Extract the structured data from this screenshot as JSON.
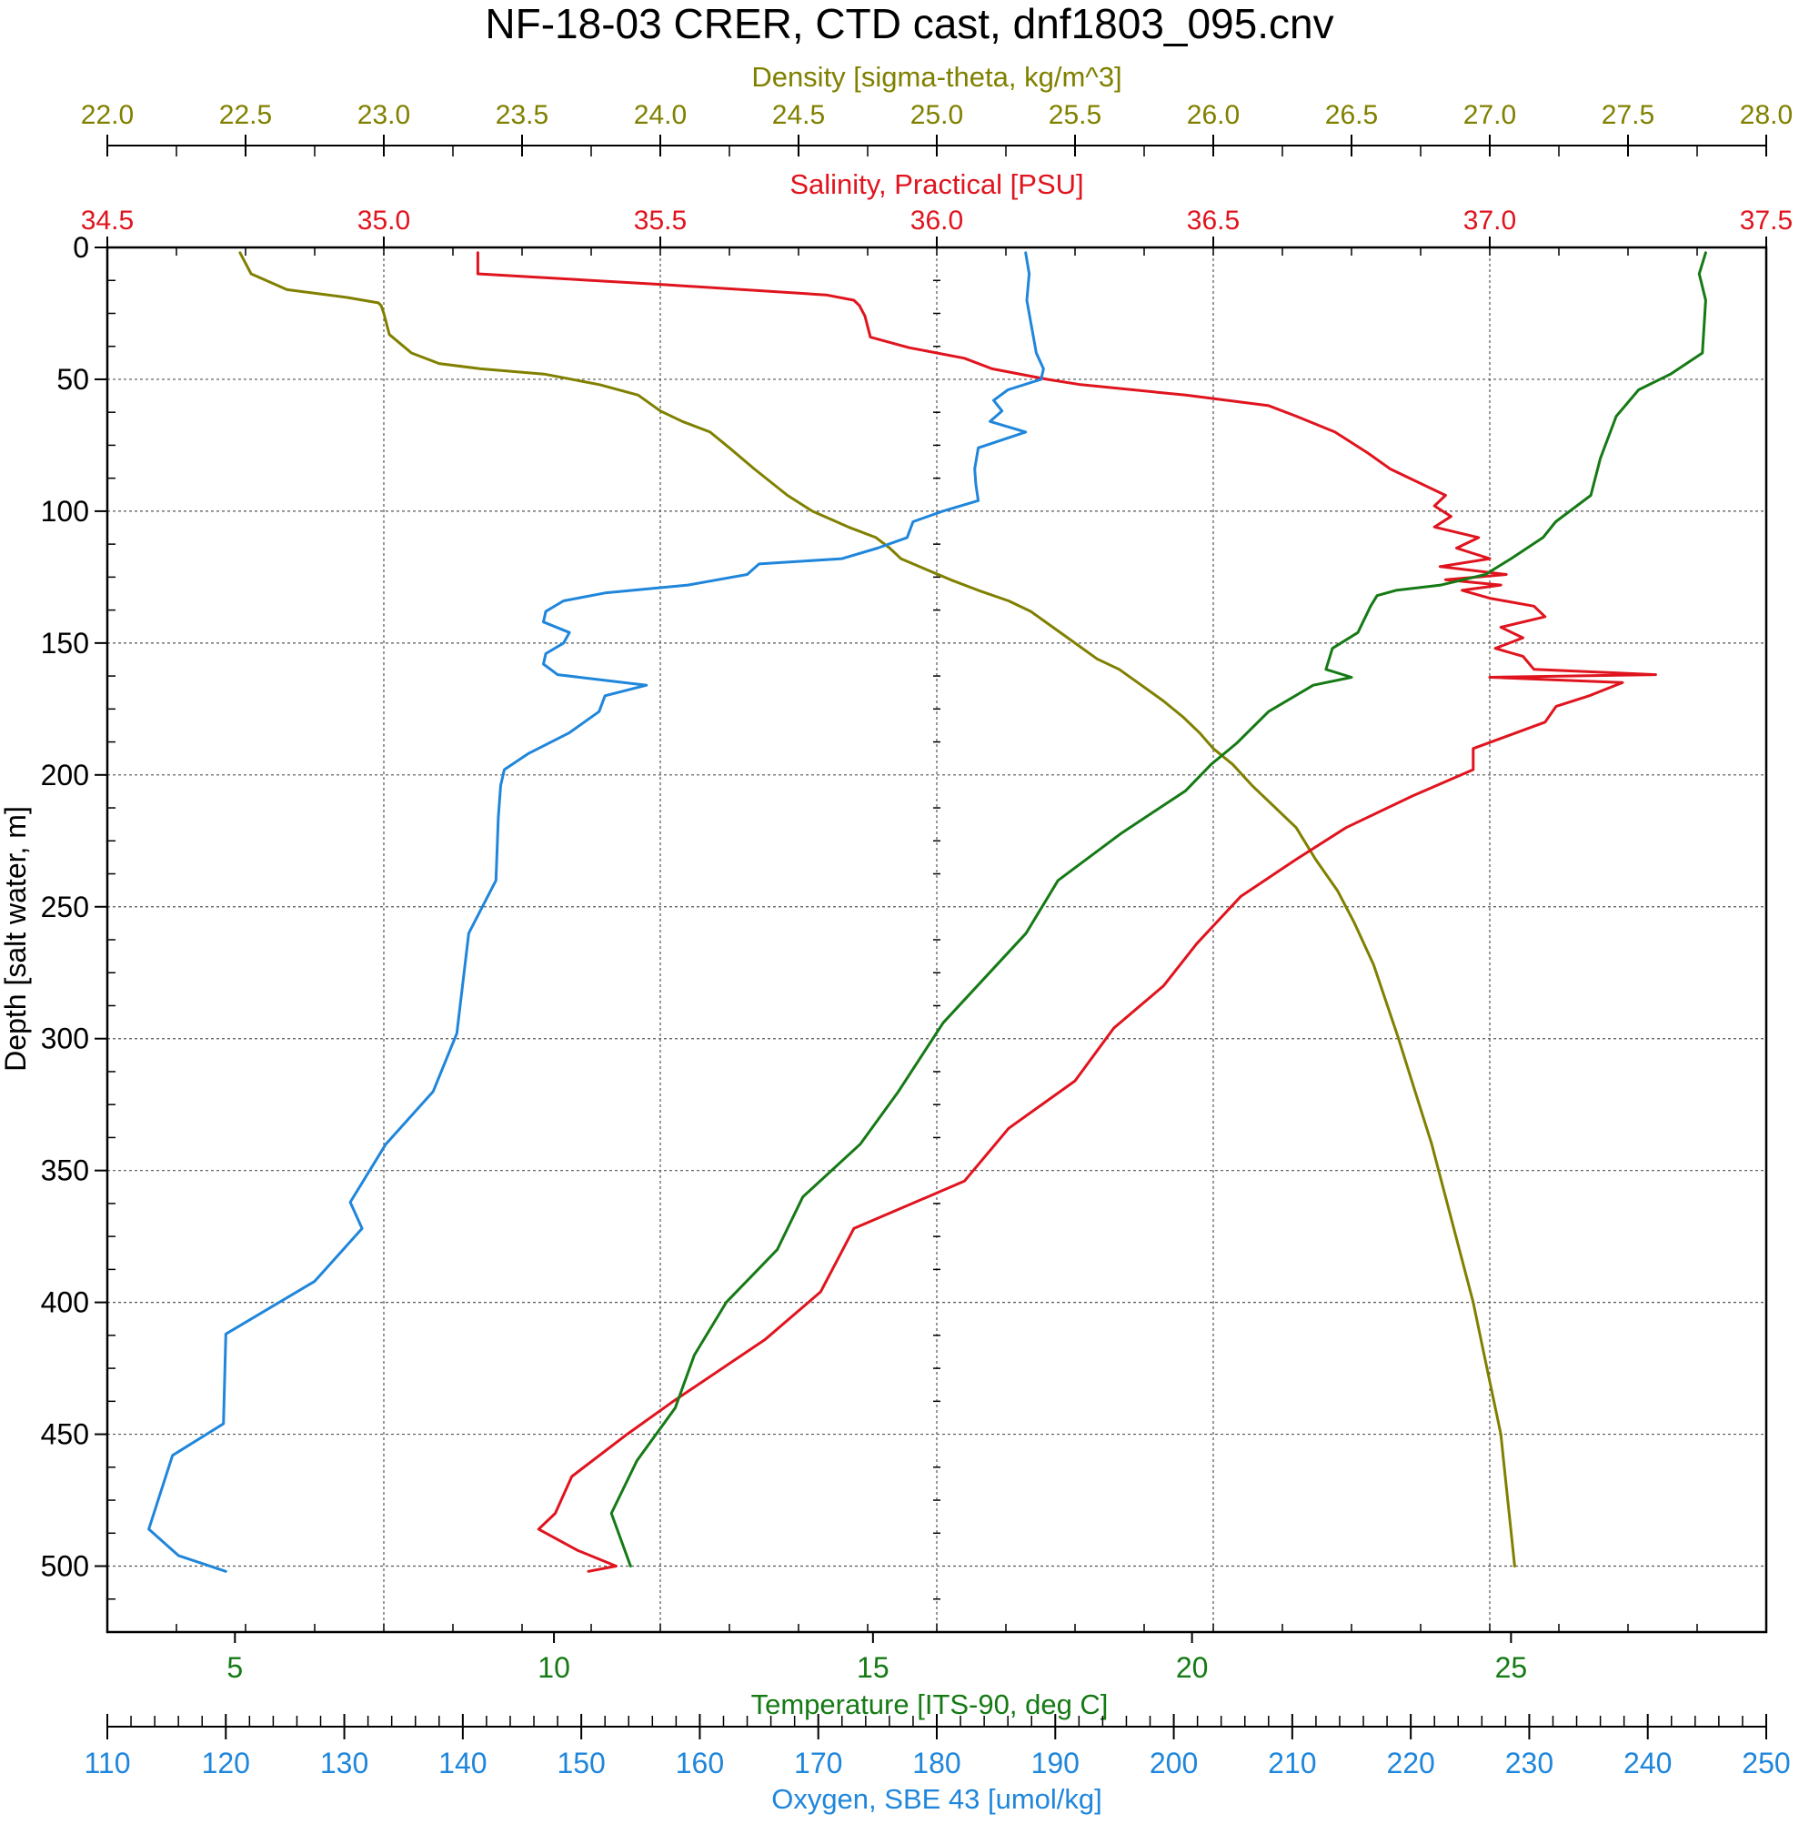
{
  "chart_data": {
    "type": "line",
    "title": "NF-18-03 CRER, CTD cast, dnf1803_095.cnv",
    "y_axis": {
      "label": "Depth [salt water, m]",
      "range": [
        0,
        525
      ],
      "ticks": [
        0,
        50,
        100,
        150,
        200,
        250,
        300,
        350,
        400,
        450,
        500
      ],
      "tick_labels": [
        "0",
        "50",
        "100",
        "150",
        "200",
        "250",
        "300",
        "350",
        "400",
        "450",
        "500"
      ],
      "inverted": true
    },
    "x_axes": [
      {
        "id": "density",
        "label": "Density [sigma-theta, kg/m^3]",
        "position": "top-outer",
        "color": "#808000",
        "range": [
          22.0,
          28.0
        ],
        "ticks": [
          22.0,
          22.5,
          23.0,
          23.5,
          24.0,
          24.5,
          25.0,
          25.5,
          26.0,
          26.5,
          27.0,
          27.5,
          28.0
        ],
        "tick_labels": [
          "22.0",
          "22.5",
          "23.0",
          "23.5",
          "24.0",
          "24.5",
          "25.0",
          "25.5",
          "26.0",
          "26.5",
          "27.0",
          "27.5",
          "28.0"
        ]
      },
      {
        "id": "salinity",
        "label": "Salinity, Practical [PSU]",
        "position": "top-inner",
        "color": "#e0141e",
        "range": [
          34.5,
          37.5
        ],
        "ticks": [
          34.5,
          35.0,
          35.5,
          36.0,
          36.5,
          37.0,
          37.5
        ],
        "tick_labels": [
          "34.5",
          "35.0",
          "35.5",
          "36.0",
          "36.5",
          "37.0",
          "37.5"
        ]
      },
      {
        "id": "temperature",
        "label": "Temperature [ITS-90, deg C]",
        "position": "bottom-inner",
        "color": "#157a15",
        "range": [
          3,
          29
        ],
        "ticks": [
          5,
          10,
          15,
          20,
          25
        ],
        "tick_labels": [
          "5",
          "10",
          "15",
          "20",
          "25"
        ]
      },
      {
        "id": "oxygen",
        "label": "Oxygen, SBE 43 [umol/kg]",
        "position": "bottom-outer",
        "color": "#1f86db",
        "range": [
          110,
          250
        ],
        "ticks": [
          110,
          120,
          130,
          140,
          150,
          160,
          170,
          180,
          190,
          200,
          210,
          220,
          230,
          240,
          250
        ],
        "tick_labels": [
          "110",
          "120",
          "130",
          "140",
          "150",
          "160",
          "170",
          "180",
          "190",
          "200",
          "210",
          "220",
          "230",
          "240",
          "250"
        ]
      }
    ],
    "grid": true,
    "series": [
      {
        "name": "Density [sigma-theta, kg/m^3]",
        "axis": "density",
        "color": "#808000",
        "depth": [
          2,
          10,
          16,
          19,
          21,
          22,
          25,
          33,
          40,
          44,
          46,
          48,
          52,
          56,
          62,
          66,
          70,
          76,
          84,
          94,
          100,
          106,
          110,
          114,
          118,
          122,
          126,
          130,
          134,
          138,
          144,
          150,
          156,
          160,
          166,
          172,
          178,
          184,
          190,
          196,
          204,
          212,
          220,
          232,
          244,
          256,
          272,
          300,
          320,
          340,
          360,
          380,
          400,
          420,
          440,
          450,
          460,
          480,
          500
        ],
        "values": [
          22.48,
          22.52,
          22.65,
          22.87,
          22.98,
          22.99,
          23.0,
          23.02,
          23.1,
          23.2,
          23.35,
          23.58,
          23.78,
          23.92,
          24.0,
          24.08,
          24.18,
          24.25,
          24.34,
          24.46,
          24.55,
          24.68,
          24.78,
          24.83,
          24.87,
          24.96,
          25.05,
          25.15,
          25.26,
          25.34,
          25.42,
          25.5,
          25.58,
          25.66,
          25.74,
          25.82,
          25.89,
          25.95,
          26.0,
          26.07,
          26.14,
          26.22,
          26.3,
          26.37,
          26.45,
          26.51,
          26.58,
          26.67,
          26.73,
          26.79,
          26.84,
          26.89,
          26.94,
          26.98,
          27.02,
          27.04,
          27.05,
          27.07,
          27.09
        ]
      },
      {
        "name": "Salinity, Practical [PSU]",
        "axis": "salinity",
        "color": "#e0141e",
        "depth": [
          2,
          10,
          14,
          18,
          20,
          22,
          26,
          34,
          38,
          42,
          46,
          50,
          52,
          56,
          60,
          64,
          70,
          74,
          78,
          84,
          90,
          94,
          98,
          102,
          106,
          110,
          114,
          118,
          121,
          124,
          126,
          128,
          130,
          133,
          136,
          140,
          144,
          148,
          152,
          155,
          160,
          162,
          163,
          165,
          170,
          174,
          180,
          190,
          198,
          208,
          220,
          232,
          246,
          264,
          280,
          296,
          316,
          334,
          354,
          372,
          396,
          414,
          438,
          450,
          466,
          480,
          486,
          494,
          500,
          502
        ],
        "values": [
          35.17,
          35.17,
          35.5,
          35.8,
          35.85,
          35.86,
          35.87,
          35.88,
          35.95,
          36.05,
          36.1,
          36.2,
          36.26,
          36.45,
          36.6,
          36.65,
          36.72,
          36.75,
          36.78,
          36.82,
          36.88,
          36.92,
          36.9,
          36.93,
          36.9,
          36.98,
          36.94,
          37.0,
          36.91,
          37.03,
          36.92,
          37.02,
          36.95,
          37.0,
          37.08,
          37.1,
          37.02,
          37.06,
          37.01,
          37.06,
          37.08,
          37.3,
          37.0,
          37.24,
          37.18,
          37.12,
          37.1,
          36.97,
          36.97,
          36.86,
          36.74,
          36.65,
          36.55,
          36.47,
          36.41,
          36.32,
          36.25,
          36.13,
          36.05,
          35.85,
          35.79,
          35.69,
          35.52,
          35.44,
          35.34,
          35.31,
          35.28,
          35.35,
          35.42,
          35.37
        ]
      },
      {
        "name": "Temperature [ITS-90, deg C]",
        "axis": "temperature",
        "color": "#157a15",
        "depth": [
          2,
          10,
          20,
          40,
          48,
          54,
          64,
          80,
          94,
          104,
          110,
          118,
          124,
          128,
          130,
          132,
          136,
          146,
          152,
          160,
          163,
          166,
          176,
          188,
          196,
          206,
          222,
          240,
          260,
          294,
          320,
          340,
          360,
          380,
          400,
          420,
          440,
          460,
          480,
          500
        ],
        "values": [
          28.05,
          27.95,
          28.05,
          28.0,
          27.5,
          27.0,
          26.65,
          26.4,
          26.25,
          25.7,
          25.5,
          25.0,
          24.6,
          23.9,
          23.2,
          22.9,
          22.8,
          22.6,
          22.2,
          22.1,
          22.5,
          21.9,
          21.2,
          20.7,
          20.3,
          19.9,
          18.9,
          17.9,
          17.4,
          16.1,
          15.4,
          14.8,
          13.9,
          13.5,
          12.7,
          12.2,
          11.9,
          11.3,
          10.9,
          11.2
        ]
      },
      {
        "name": "Oxygen, SBE 43 [umol/kg]",
        "axis": "oxygen",
        "color": "#1f86db",
        "depth": [
          2,
          10,
          20,
          30,
          40,
          46,
          50,
          54,
          58,
          62,
          66,
          70,
          76,
          84,
          90,
          96,
          100,
          104,
          110,
          114,
          118,
          120,
          124,
          128,
          131,
          134,
          138,
          142,
          146,
          150,
          154,
          158,
          162,
          166,
          170,
          176,
          184,
          192,
          198,
          204,
          216,
          240,
          260,
          298,
          320,
          340,
          362,
          372,
          392,
          412,
          446,
          458,
          472,
          486,
          496,
          502
        ],
        "values": [
          187.5,
          187.8,
          187.6,
          188.0,
          188.4,
          189.0,
          188.8,
          186.0,
          184.8,
          185.5,
          184.5,
          187.5,
          183.5,
          183.2,
          183.3,
          183.5,
          180.5,
          178.0,
          177.5,
          175.0,
          172.0,
          165.0,
          164.0,
          159.0,
          152.0,
          148.5,
          147.0,
          146.8,
          149.0,
          148.5,
          147.0,
          146.8,
          148.0,
          155.5,
          152.0,
          151.5,
          149.0,
          145.5,
          143.5,
          143.2,
          143.0,
          142.8,
          140.5,
          139.5,
          137.5,
          133.5,
          130.5,
          131.5,
          127.5,
          120.0,
          119.8,
          115.5,
          114.5,
          113.5,
          116.0,
          120.0
        ]
      }
    ]
  }
}
